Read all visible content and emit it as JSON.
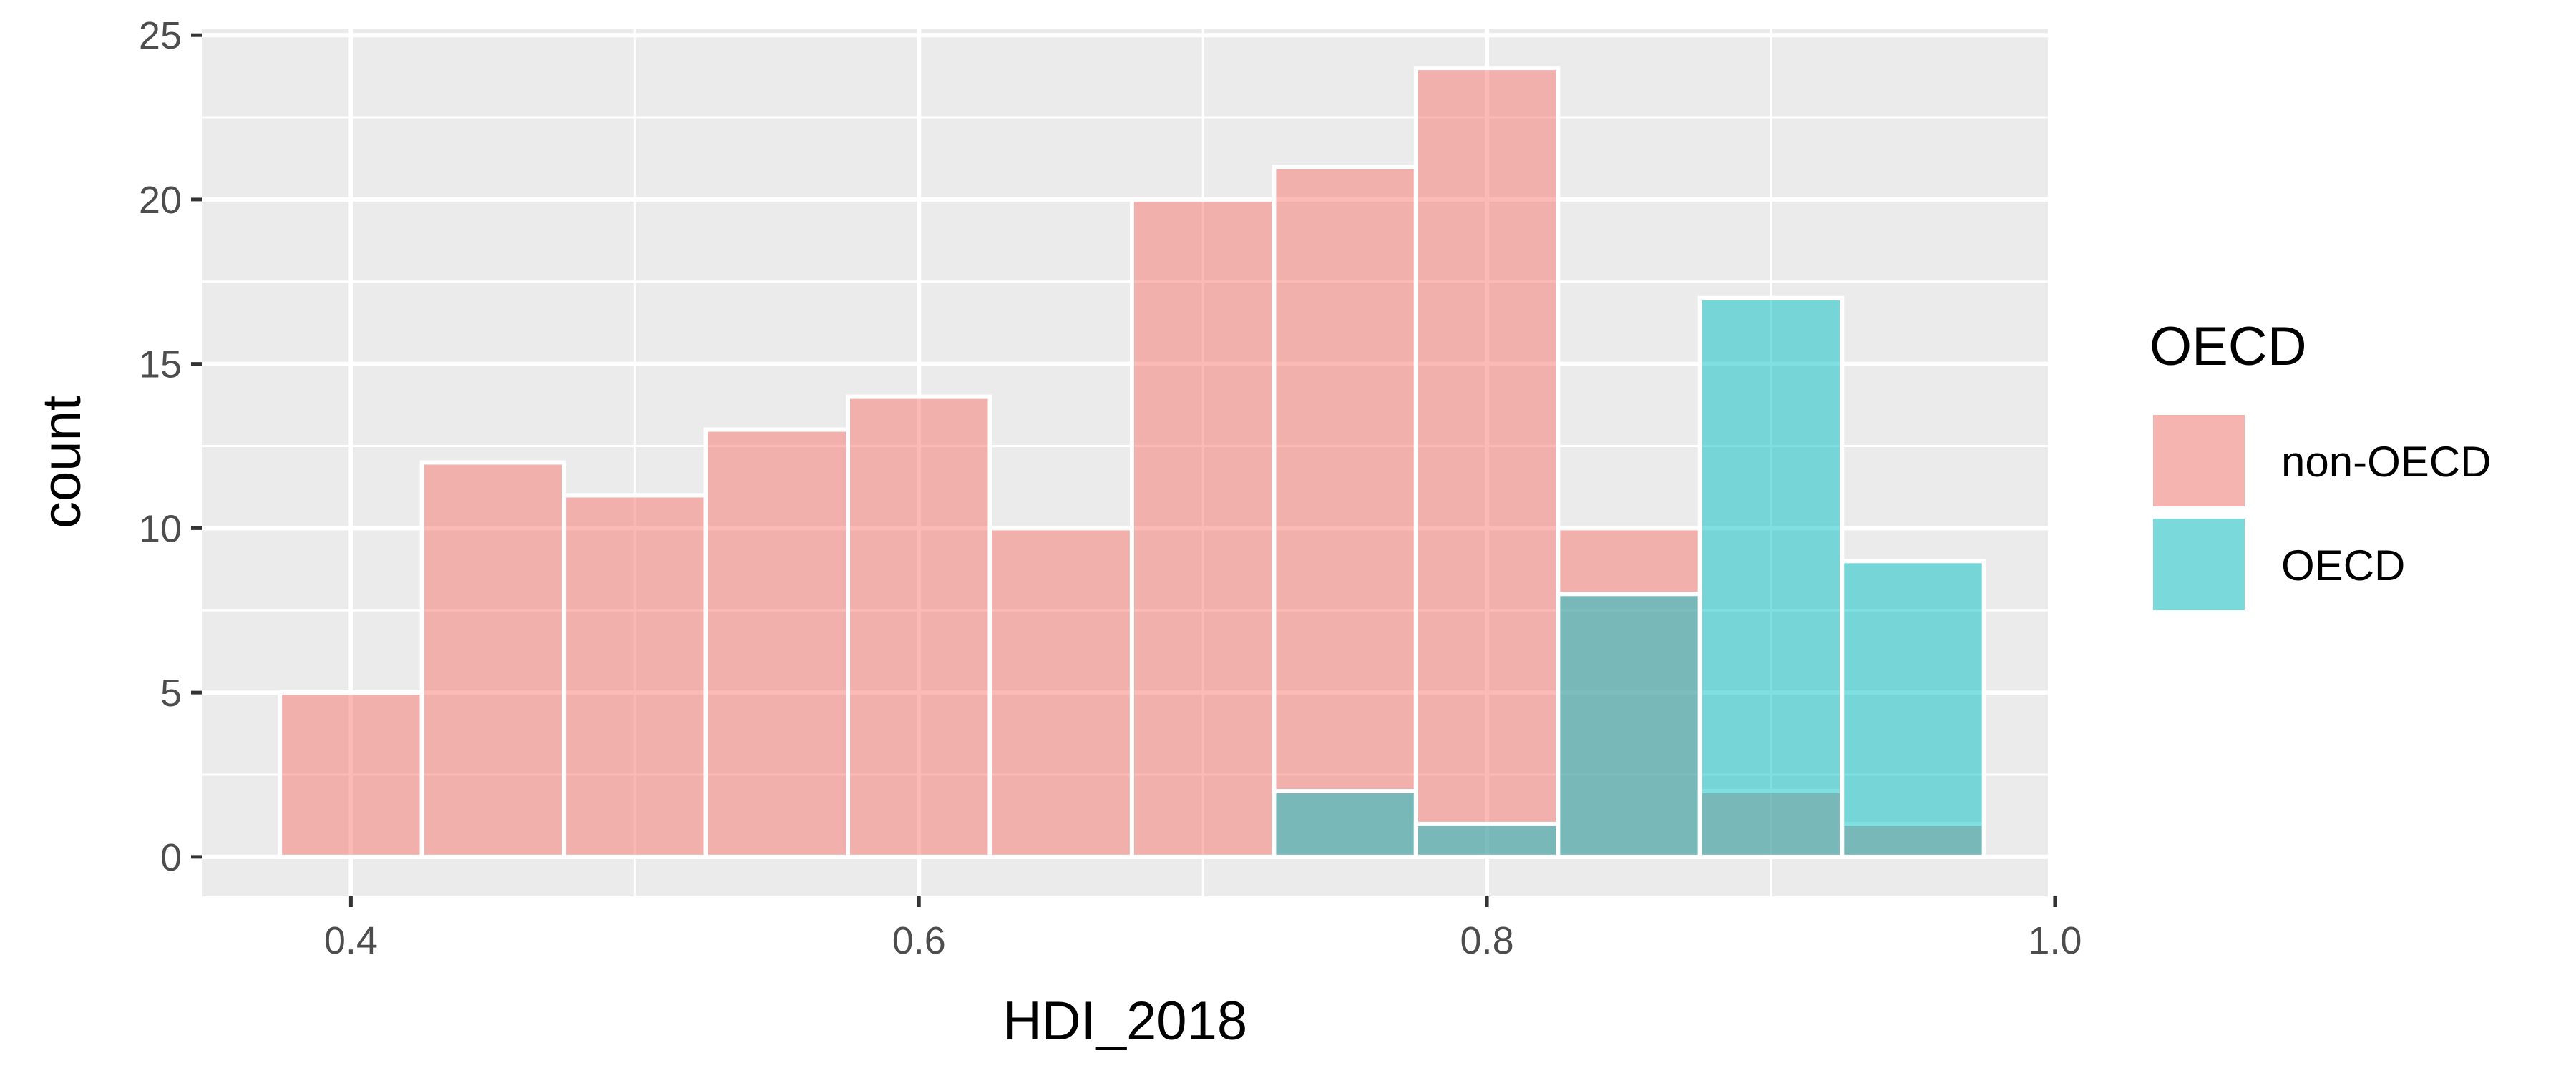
{
  "chart_data": {
    "type": "bar",
    "subtype": "histogram",
    "position": "identity",
    "bin_width": 0.05,
    "bin_centers": [
      0.4,
      0.45,
      0.5,
      0.55,
      0.6,
      0.65,
      0.7,
      0.75,
      0.8,
      0.85,
      0.9,
      0.95
    ],
    "series": [
      {
        "name": "non-OECD",
        "color": "#F8766D",
        "values": [
          5,
          12,
          11,
          13,
          14,
          10,
          20,
          21,
          24,
          10,
          2,
          1
        ]
      },
      {
        "name": "OECD",
        "color": "#00BFC4",
        "values": [
          0,
          0,
          0,
          0,
          0,
          0,
          0,
          2,
          1,
          8,
          17,
          9
        ]
      }
    ],
    "fill_opacity": 0.5,
    "bar_outline": "#ffffff",
    "xlabel": "HDI_2018",
    "ylabel": "count",
    "xlim": [
      0.3475,
      0.9975
    ],
    "ylim": [
      -1.2,
      25.2
    ],
    "x_ticks": [
      0.4,
      0.6,
      0.8,
      1.0
    ],
    "x_tick_labels": [
      "0.4",
      "0.6",
      "0.8",
      "1.0"
    ],
    "y_ticks": [
      0,
      5,
      10,
      15,
      20,
      25
    ],
    "y_tick_labels": [
      "0",
      "5",
      "10",
      "15",
      "20",
      "25"
    ],
    "grid": true,
    "panel_background": "#EBEBEB",
    "legend": {
      "title": "OECD",
      "position": "right",
      "entries": [
        "non-OECD",
        "OECD"
      ]
    }
  }
}
